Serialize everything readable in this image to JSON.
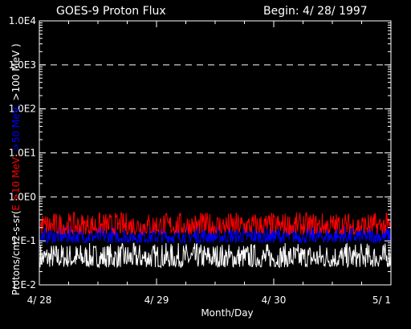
{
  "chart_data": {
    "type": "line",
    "title": "GOES-9 Proton Flux",
    "begin_label": "Begin: 4/ 28/ 1997",
    "xlabel": "Month/Day",
    "ylabel_parts": [
      {
        "text": "Protons/cm2-s-sr(",
        "color": "#ffffff"
      },
      {
        "text": "E >10 MeV, ",
        "color": "#ff0000"
      },
      {
        "text": ">50 MeV, ",
        "color": "#0000ff"
      },
      {
        "text": ">100 MeV )",
        "color": "#ffffff"
      }
    ],
    "y_scale": "log",
    "ylim": [
      0.01,
      10000
    ],
    "y_ticks": [
      {
        "value": 0.01,
        "label": "1.E-2"
      },
      {
        "value": 0.1,
        "label": "1.E-1"
      },
      {
        "value": 1,
        "label": "1.0E0"
      },
      {
        "value": 10,
        "label": "1.0E1"
      },
      {
        "value": 100,
        "label": "1.0E2"
      },
      {
        "value": 1000,
        "label": "1.0E3"
      },
      {
        "value": 10000,
        "label": "1.0E4"
      }
    ],
    "gridlines_at": [
      1,
      10,
      100,
      1000
    ],
    "x_range_days": [
      0,
      3
    ],
    "x_ticks": [
      {
        "value": 0,
        "label": "4/ 28"
      },
      {
        "value": 1,
        "label": "4/ 29"
      },
      {
        "value": 2,
        "label": "4/ 30"
      },
      {
        "value": 3,
        "label": "5/ 1"
      }
    ],
    "series": [
      {
        "name": "E >10 MeV",
        "color": "#ff0000",
        "low": 0.14,
        "high": 0.45
      },
      {
        "name": ">50 MeV",
        "color": "#0000ff",
        "low": 0.09,
        "high": 0.22
      },
      {
        "name": ">100 MeV",
        "color": "#ffffff",
        "low": 0.025,
        "high": 0.09
      }
    ]
  }
}
